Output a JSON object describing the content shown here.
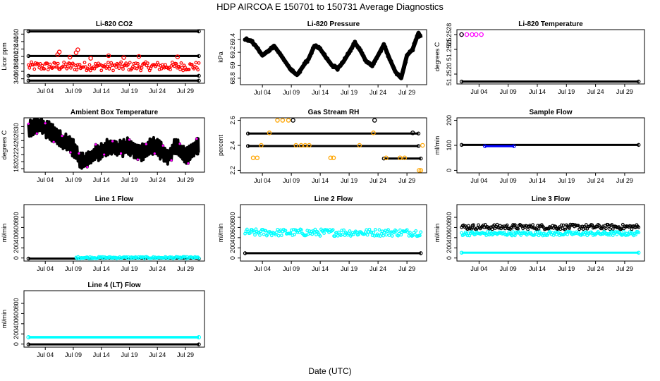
{
  "title": "HDP    AIRCOA E    150701 to 150731    Average Diagnostics",
  "xlabel": "Date (UTC)",
  "x_ticks": [
    "Jul 04",
    "Jul 09",
    "Jul 14",
    "Jul 19",
    "Jul 24",
    "Jul 29"
  ],
  "x_tick_days": [
    4,
    9,
    14,
    19,
    24,
    29
  ],
  "x_range_days": [
    0.2,
    32.4
  ],
  "colors": {
    "black": "#000000",
    "red": "#ff0000",
    "cyan": "#00ffff",
    "orange": "#ffa500",
    "magenta": "#ff00ff",
    "blue": "#0000ff"
  },
  "chart_data": [
    {
      "id": "co2",
      "type": "scatter",
      "title": "Li-820 CO2",
      "ylabel": "Licor ppm",
      "ylim": [
        328,
        472
      ],
      "yticks": [
        340,
        360,
        380,
        400,
        420,
        440,
        460
      ],
      "series": [
        {
          "name": "ref high",
          "color": "#000000",
          "kind": "band",
          "x_range": [
            1,
            31.4
          ],
          "y_range": [
            465,
            470
          ]
        },
        {
          "name": "ref mid",
          "color": "#000000",
          "kind": "band",
          "x_range": [
            1,
            31.4
          ],
          "y_range": [
            400,
            404
          ]
        },
        {
          "name": "ref low",
          "color": "#000000",
          "kind": "band",
          "x_range": [
            1,
            31.4
          ],
          "y_range": [
            346,
            351
          ]
        },
        {
          "name": "ref base",
          "color": "#000000",
          "kind": "band",
          "x_range": [
            1,
            31.4
          ],
          "y_range": [
            334,
            338
          ]
        },
        {
          "name": "sample",
          "color": "#ff0000",
          "kind": "noisy",
          "x_range": [
            1,
            31.4
          ],
          "y_range": [
            362,
            385
          ]
        },
        {
          "name": "sample spikes",
          "color": "#ff0000",
          "kind": "points",
          "x": [
            6.2,
            6.5,
            8.4,
            9.5,
            9.8,
            12.1,
            15.3,
            18.0,
            20.7,
            27.6
          ],
          "y": [
            405,
            412,
            398,
            410,
            418,
            395,
            402,
            397,
            400,
            399
          ]
        }
      ]
    },
    {
      "id": "pressure",
      "type": "line",
      "title": "Li-820 Pressure",
      "ylabel": "kPa",
      "ylim": [
        68.7,
        69.55
      ],
      "yticks": [
        68.8,
        69.0,
        69.2,
        69.4
      ],
      "series": [
        {
          "name": "pressure",
          "color": "#000000",
          "kind": "line",
          "x": [
            1,
            2,
            3,
            4,
            5,
            6,
            7,
            8,
            9,
            10,
            11,
            12,
            13,
            14,
            15,
            16,
            17,
            18,
            19,
            20,
            21,
            22,
            23,
            24,
            25,
            26,
            27,
            28,
            29,
            30,
            31,
            31.4
          ],
          "y": [
            69.4,
            69.38,
            69.28,
            69.15,
            69.22,
            69.3,
            69.18,
            69.05,
            68.92,
            68.85,
            68.98,
            69.1,
            69.3,
            69.25,
            69.12,
            69.0,
            68.95,
            69.05,
            69.2,
            69.35,
            69.22,
            69.05,
            69.0,
            69.15,
            69.32,
            69.1,
            68.9,
            68.8,
            69.15,
            69.25,
            69.5,
            69.42
          ]
        }
      ]
    },
    {
      "id": "temperature",
      "type": "scatter",
      "title": "Li-820 Temperature",
      "ylabel": "degrees C",
      "ylim": [
        51.2518,
        51.2529
      ],
      "yticks": [
        51.252,
        51.2525,
        51.2528
      ],
      "ytick_labels": [
        "51.2520",
        "51.2525",
        "51.2528"
      ],
      "series": [
        {
          "name": "temperature",
          "color": "#000000",
          "kind": "band",
          "x_range": [
            1,
            31.4
          ],
          "y_range": [
            51.25183,
            51.25187
          ]
        },
        {
          "name": "temperature high",
          "color": "#ff00ff",
          "kind": "points",
          "x": [
            1.0,
            1.9,
            2.8,
            3.5,
            4.4
          ],
          "y": [
            51.2528,
            51.2528,
            51.2528,
            51.2528,
            51.2528
          ]
        },
        {
          "name": "temperature high outline",
          "color": "#000000",
          "kind": "points",
          "x": [
            1.0
          ],
          "y": [
            51.2528
          ]
        }
      ]
    },
    {
      "id": "ambient",
      "type": "line",
      "title": "Ambient Box Temperature",
      "ylabel": "degrees C",
      "ylim": [
        17,
        32.5
      ],
      "yticks": [
        18,
        20,
        22,
        24,
        26,
        28,
        30
      ],
      "series": [
        {
          "name": "ambient",
          "color": "#000000",
          "kind": "wiggle",
          "x": [
            1,
            2,
            3,
            4,
            5,
            6,
            7,
            8,
            9,
            10,
            11,
            12,
            13,
            14,
            15,
            16,
            17,
            18,
            19,
            20,
            21,
            22,
            23,
            24,
            25,
            26,
            27,
            28,
            29,
            30,
            31,
            31.4
          ],
          "y": [
            29,
            30,
            30.5,
            29.5,
            28.5,
            27,
            26,
            25,
            24,
            21,
            20,
            21,
            22.5,
            23,
            24,
            24.5,
            23.5,
            24,
            24.5,
            23,
            22.5,
            23.5,
            24.5,
            24,
            22.5,
            21.5,
            24,
            23.5,
            21.5,
            22.5,
            24,
            25
          ],
          "amp": 2.6
        }
      ]
    },
    {
      "id": "rh",
      "type": "scatter",
      "title": "Gas Stream RH",
      "ylabel": "percent",
      "ylim": [
        2.18,
        2.62
      ],
      "yticks": [
        2.2,
        2.4,
        2.6
      ],
      "ytick_labels": [
        "2.2",
        "2.4",
        "2.6"
      ],
      "series": [
        {
          "name": "rh 2.5 band",
          "color": "#000000",
          "kind": "band",
          "x_range": [
            1.5,
            31
          ],
          "y_range": [
            2.497,
            2.503
          ]
        },
        {
          "name": "rh 2.4 band",
          "color": "#000000",
          "kind": "band",
          "x_range": [
            1.5,
            31
          ],
          "y_range": [
            2.397,
            2.403
          ]
        },
        {
          "name": "rh 2.3 band",
          "color": "#000000",
          "kind": "band",
          "x_range": [
            25,
            31.4
          ],
          "y_range": [
            2.297,
            2.303
          ]
        },
        {
          "name": "rh orange",
          "color": "#ffa500",
          "kind": "points",
          "x": [
            2.4,
            3.1,
            3.8,
            5.2,
            6.6,
            7.5,
            8.5,
            9.8,
            10.7,
            11.4,
            12.1,
            15.8,
            16.3,
            20.8,
            23.2,
            25.4,
            27.8,
            28.6,
            31.1,
            31.4,
            31.7
          ],
          "y": [
            2.3,
            2.3,
            2.4,
            2.5,
            2.6,
            2.6,
            2.6,
            2.4,
            2.4,
            2.4,
            2.4,
            2.3,
            2.3,
            2.4,
            2.5,
            2.3,
            2.3,
            2.3,
            2.2,
            2.2,
            2.4
          ]
        },
        {
          "name": "rh extra",
          "color": "#000000",
          "kind": "points",
          "x": [
            9.3,
            23.4,
            30.0
          ],
          "y": [
            2.6,
            2.6,
            2.5
          ]
        }
      ]
    },
    {
      "id": "sample_flow",
      "type": "scatter",
      "title": "Sample Flow",
      "ylabel": "ml/min",
      "ylim": [
        -10,
        210
      ],
      "yticks": [
        0,
        100,
        200
      ],
      "series": [
        {
          "name": "sample flow",
          "color": "#000000",
          "kind": "band",
          "x_range": [
            1,
            31.4
          ],
          "y_range": [
            98,
            106
          ]
        },
        {
          "name": "sample flow blue",
          "color": "#0000ff",
          "kind": "band",
          "x_range": [
            5,
            10
          ],
          "y_range": [
            100,
            101
          ]
        }
      ]
    },
    {
      "id": "line1",
      "type": "scatter",
      "title": "Line 1 Flow",
      "ylabel": "ml/min",
      "ylim": [
        -60,
        1050
      ],
      "yticks": [
        0,
        200,
        400,
        600,
        800
      ],
      "series": [
        {
          "name": "line1 black",
          "color": "#000000",
          "kind": "band",
          "x_range": [
            1,
            31.4
          ],
          "y_range": [
            -10,
            10
          ]
        },
        {
          "name": "line1 cyan",
          "color": "#00ffff",
          "kind": "noisy",
          "x_range": [
            9.5,
            31.4
          ],
          "y_range": [
            -10,
            25
          ]
        }
      ]
    },
    {
      "id": "line2",
      "type": "scatter",
      "title": "Line 2 Flow",
      "ylabel": "ml/min",
      "ylim": [
        -60,
        1050
      ],
      "yticks": [
        0,
        200,
        400,
        600,
        800
      ],
      "series": [
        {
          "name": "line2 cyan",
          "color": "#00ffff",
          "kind": "noisy",
          "x_range": [
            1,
            31.4
          ],
          "y_range": [
            430,
            570
          ]
        },
        {
          "name": "line2 black",
          "color": "#000000",
          "kind": "band",
          "x_range": [
            1,
            31.4
          ],
          "y_range": [
            80,
            115
          ]
        }
      ]
    },
    {
      "id": "line3",
      "type": "scatter",
      "title": "Line 3 Flow",
      "ylabel": "ml/min",
      "ylim": [
        -60,
        1050
      ],
      "yticks": [
        0,
        200,
        400,
        600,
        800
      ],
      "series": [
        {
          "name": "line3 black",
          "color": "#000000",
          "kind": "noisy",
          "x_range": [
            1,
            31.4
          ],
          "y_range": [
            560,
            660
          ]
        },
        {
          "name": "line3 cyan mid",
          "color": "#00ffff",
          "kind": "noisy",
          "x_range": [
            1,
            31.4
          ],
          "y_range": [
            440,
            520
          ]
        },
        {
          "name": "line3 cyan low",
          "color": "#00ffff",
          "kind": "band",
          "x_range": [
            1,
            31.4
          ],
          "y_range": [
            90,
            125
          ]
        }
      ]
    },
    {
      "id": "line4",
      "type": "scatter",
      "title": "Line 4 (LT) Flow",
      "ylabel": "ml/min",
      "ylim": [
        -60,
        1050
      ],
      "yticks": [
        0,
        200,
        400,
        600,
        800
      ],
      "series": [
        {
          "name": "line4 cyan",
          "color": "#00ffff",
          "kind": "band",
          "x_range": [
            1,
            31.4
          ],
          "y_range": [
            110,
            160
          ]
        },
        {
          "name": "line4 black",
          "color": "#000000",
          "kind": "band",
          "x_range": [
            1,
            31.4
          ],
          "y_range": [
            -10,
            15
          ]
        }
      ]
    }
  ]
}
